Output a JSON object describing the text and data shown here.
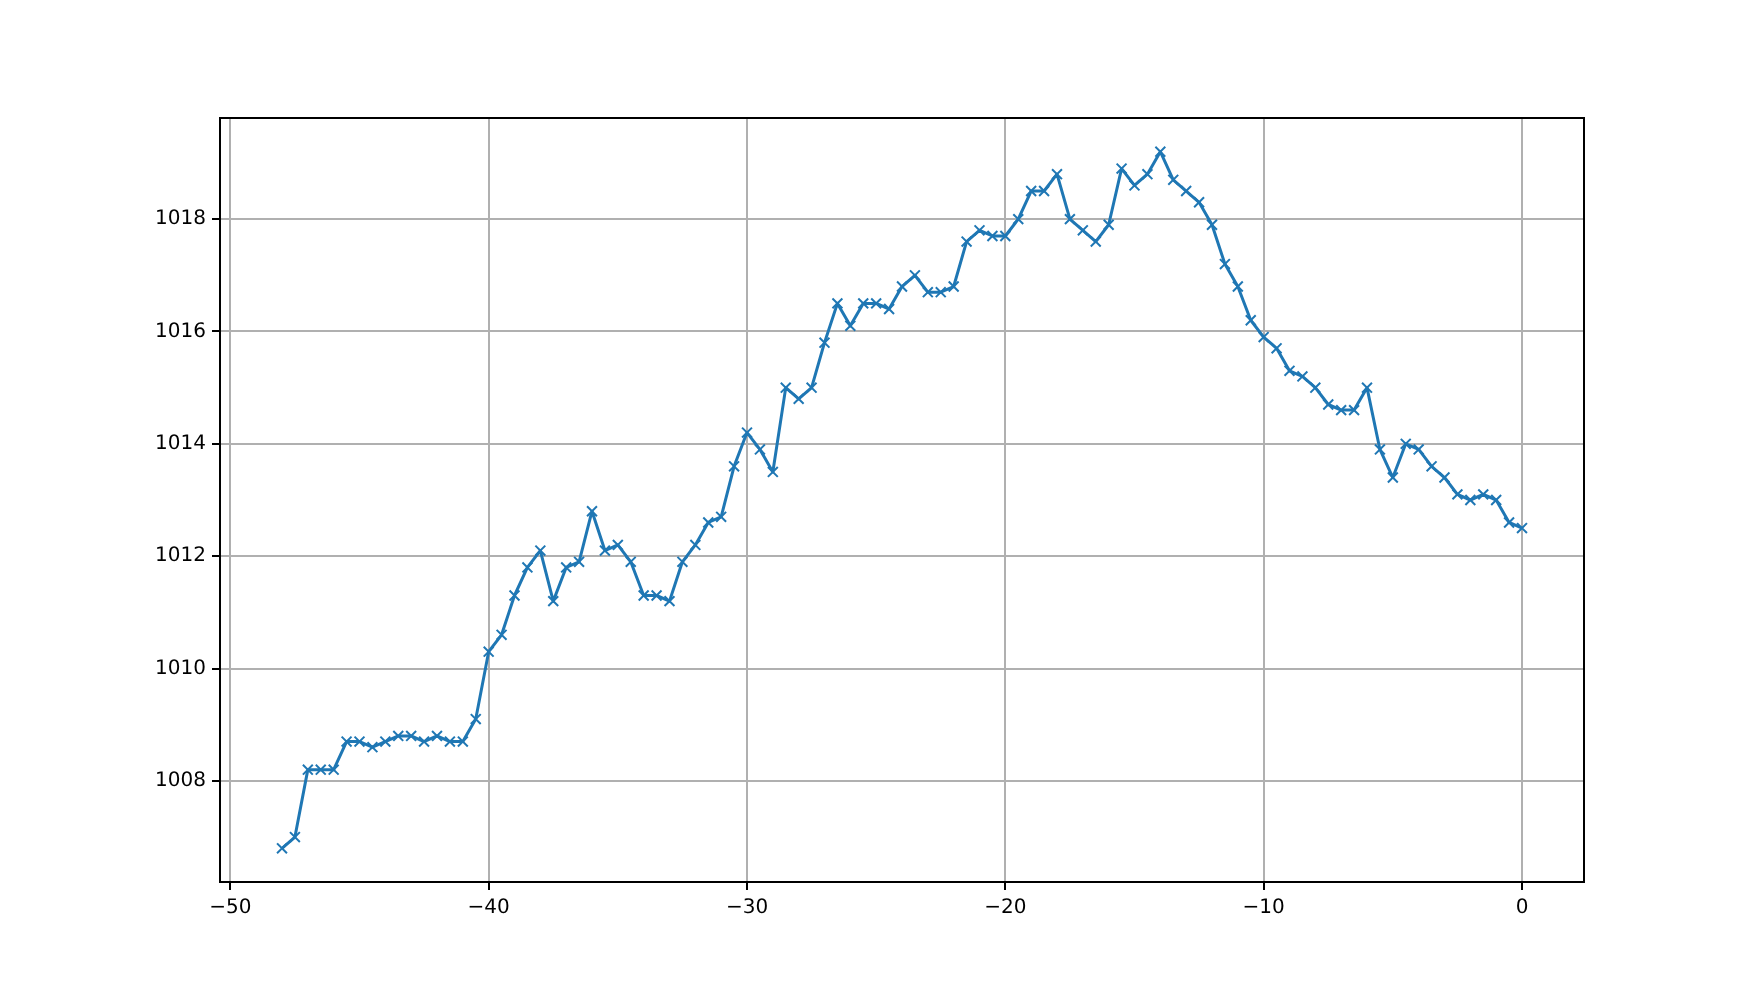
{
  "chart_data": {
    "type": "line",
    "marker": "cross",
    "grid": true,
    "legend": false,
    "x": [
      -48,
      -47.5,
      -47,
      -46.5,
      -46,
      -45.5,
      -45,
      -44.5,
      -44,
      -43.5,
      -43,
      -42.5,
      -42,
      -41.5,
      -41,
      -40.5,
      -40,
      -39.5,
      -39,
      -38.5,
      -38,
      -37.5,
      -37,
      -36.5,
      -36,
      -35.5,
      -35,
      -34.5,
      -34,
      -33.5,
      -33,
      -32.5,
      -32,
      -31.5,
      -31,
      -30.5,
      -30,
      -29.5,
      -29,
      -28.5,
      -28,
      -27.5,
      -27,
      -26.5,
      -26,
      -25.5,
      -25,
      -24.5,
      -24,
      -23.5,
      -23,
      -22.5,
      -22,
      -21.5,
      -21,
      -20.5,
      -20,
      -19.5,
      -19,
      -18.5,
      -18,
      -17.5,
      -17,
      -16.5,
      -16,
      -15.5,
      -15,
      -14.5,
      -14,
      -13.5,
      -13,
      -12.5,
      -12,
      -11.5,
      -11,
      -10.5,
      -10,
      -9.5,
      -9,
      -8.5,
      -8,
      -7.5,
      -7,
      -6.5,
      -6,
      -5.5,
      -5,
      -4.5,
      -4,
      -3.5,
      -3,
      -2.5,
      -2,
      -1.5,
      -1,
      -0.5,
      0
    ],
    "series": [
      {
        "color": "#1f77b4",
        "values": [
          1006.8,
          1007.0,
          1008.2,
          1008.2,
          1008.2,
          1008.7,
          1008.7,
          1008.6,
          1008.7,
          1008.8,
          1008.8,
          1008.7,
          1008.8,
          1008.7,
          1008.7,
          1009.1,
          1010.3,
          1010.6,
          1011.3,
          1011.8,
          1012.1,
          1011.2,
          1011.8,
          1011.9,
          1012.8,
          1012.1,
          1012.2,
          1011.9,
          1011.3,
          1011.3,
          1011.2,
          1011.9,
          1012.2,
          1012.6,
          1012.7,
          1013.6,
          1014.2,
          1013.9,
          1013.5,
          1015.0,
          1014.8,
          1015.0,
          1015.8,
          1016.5,
          1016.1,
          1016.5,
          1016.5,
          1016.4,
          1016.8,
          1017.0,
          1016.7,
          1016.7,
          1016.8,
          1017.6,
          1017.8,
          1017.7,
          1017.7,
          1018.0,
          1018.5,
          1018.5,
          1018.8,
          1018.0,
          1017.8,
          1017.6,
          1017.9,
          1018.9,
          1018.6,
          1018.8,
          1019.2,
          1018.7,
          1018.5,
          1018.3,
          1017.9,
          1017.2,
          1016.8,
          1016.2,
          1015.9,
          1015.7,
          1015.3,
          1015.2,
          1015.0,
          1014.7,
          1014.6,
          1014.6,
          1015.0,
          1013.9,
          1013.4,
          1014.0,
          1013.9,
          1013.6,
          1013.4,
          1013.1,
          1013.0,
          1013.1,
          1013.0,
          1012.6,
          1012.5
        ]
      }
    ],
    "xlim": [
      -50.4,
      2.4
    ],
    "ylim": [
      1006.2,
      1019.8
    ],
    "xticks": [
      -50,
      -40,
      -30,
      -20,
      -10,
      0
    ],
    "yticks": [
      1008,
      1010,
      1012,
      1014,
      1016,
      1018
    ]
  }
}
